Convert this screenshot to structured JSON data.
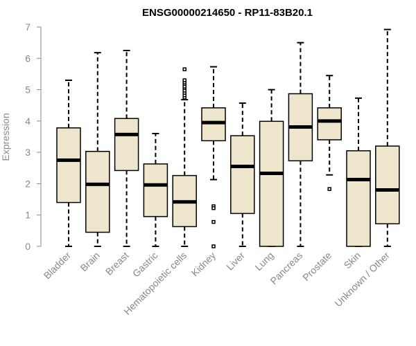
{
  "chart_data": {
    "type": "box",
    "title": "ENSG00000214650 - RP11-83B20.1",
    "ylabel": "Expression",
    "xlabel": "",
    "ylim": [
      0,
      7
    ],
    "yticks": [
      "0",
      "1",
      "2",
      "3",
      "4",
      "5",
      "6",
      "7"
    ],
    "box_fill": "#ede6cd",
    "box_stroke": "#000000",
    "axis_color": "#888888",
    "categories": [
      "Bladder",
      "Brain",
      "Breast",
      "Gastric",
      "Hematopoietic cells",
      "Kidney",
      "Liver",
      "Lung",
      "Pancreas",
      "Prostate",
      "Skin",
      "Unknown / Other"
    ],
    "boxes": [
      {
        "min": 0.0,
        "q1": 1.4,
        "median": 2.75,
        "q3": 3.78,
        "max": 5.3,
        "outliers": []
      },
      {
        "min": 0.0,
        "q1": 0.45,
        "median": 1.98,
        "q3": 3.03,
        "max": 6.18,
        "outliers": []
      },
      {
        "min": 0.0,
        "q1": 2.42,
        "median": 3.57,
        "q3": 4.08,
        "max": 6.25,
        "outliers": []
      },
      {
        "min": 0.0,
        "q1": 0.95,
        "median": 1.96,
        "q3": 2.63,
        "max": 3.6,
        "outliers": []
      },
      {
        "min": 0.0,
        "q1": 0.63,
        "median": 1.42,
        "q3": 2.26,
        "max": 4.68,
        "outliers": [
          4.75,
          4.82,
          4.9,
          4.97,
          5.05,
          5.1,
          5.18,
          5.23,
          5.3,
          5.65
        ]
      },
      {
        "min": 2.13,
        "q1": 3.37,
        "median": 3.95,
        "q3": 4.42,
        "max": 5.73,
        "outliers": [
          1.28,
          1.22,
          0.78,
          0.0
        ]
      },
      {
        "min": 0.0,
        "q1": 1.05,
        "median": 2.55,
        "q3": 3.53,
        "max": 4.57,
        "outliers": []
      },
      {
        "min": 0.0,
        "q1": 0.0,
        "median": 2.33,
        "q3": 3.99,
        "max": 5.0,
        "outliers": []
      },
      {
        "min": 0.0,
        "q1": 2.73,
        "median": 3.81,
        "q3": 4.87,
        "max": 6.5,
        "outliers": []
      },
      {
        "min": 2.28,
        "q1": 3.4,
        "median": 4.0,
        "q3": 4.42,
        "max": 5.45,
        "outliers": [
          1.83
        ]
      },
      {
        "min": 0.0,
        "q1": 0.0,
        "median": 2.13,
        "q3": 3.05,
        "max": 4.73,
        "outliers": []
      },
      {
        "min": 0.0,
        "q1": 0.72,
        "median": 1.8,
        "q3": 3.2,
        "max": 6.92,
        "outliers": []
      }
    ]
  }
}
